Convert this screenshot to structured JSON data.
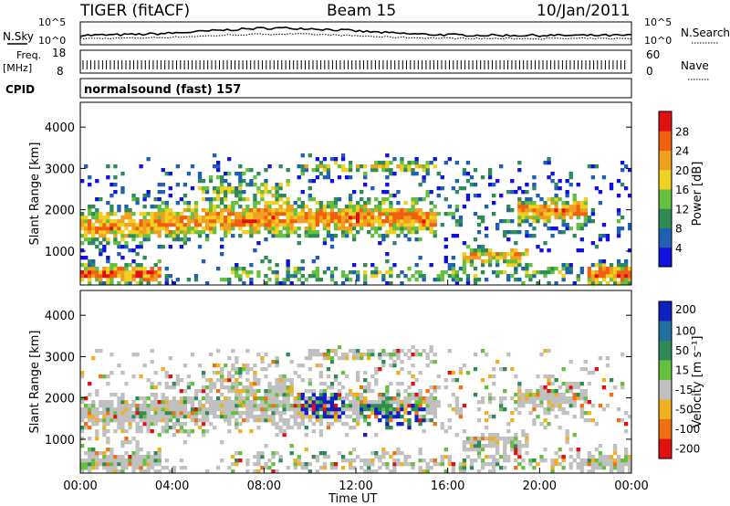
{
  "header": {
    "radar": "TIGER (fitACF)",
    "beam": "Beam 15",
    "date": "10/Jan/2011"
  },
  "panels": {
    "nsky": {
      "label": "N.Sky",
      "ticks_left": [
        "10^5",
        "10^0"
      ],
      "ticks_right": [
        "10^5",
        "10^0"
      ],
      "right_label": "N.Search"
    },
    "freq": {
      "label_1": "Freq.",
      "label_2": "[MHz]",
      "ticks_left": [
        "18",
        "8"
      ],
      "ticks_right": [
        "60",
        "0"
      ],
      "right_label": "Nave"
    },
    "cpid": {
      "label": "CPID",
      "text": "normalsound (fast) 157"
    }
  },
  "chart_data": [
    {
      "type": "heatmap",
      "name": "power",
      "x": [
        "00:00",
        "04:00",
        "08:00",
        "12:00",
        "16:00",
        "20:00",
        "00:00"
      ],
      "xlabel": "",
      "ylabel": "Slant Range [km]",
      "yticks": [
        "1000",
        "2000",
        "3000",
        "4000"
      ],
      "ylim": [
        180,
        4600
      ],
      "colorbar": {
        "label": "Power [dB]",
        "ticks": [
          "4",
          "8",
          "12",
          "16",
          "20",
          "24",
          "28"
        ],
        "colors": [
          "#1010e0",
          "#2060b0",
          "#2e8b57",
          "#66c040",
          "#f0d020",
          "#f0a020",
          "#f06010",
          "#e01010"
        ]
      }
    },
    {
      "type": "heatmap",
      "name": "velocity",
      "x": [
        "00:00",
        "04:00",
        "08:00",
        "12:00",
        "16:00",
        "20:00",
        "00:00"
      ],
      "xlabel": "Time UT",
      "ylabel": "Slant Range [km]",
      "yticks": [
        "1000",
        "2000",
        "3000",
        "4000"
      ],
      "ylim": [
        180,
        4600
      ],
      "colorbar": {
        "label": "Velocity [m s⁻¹]",
        "ticks": [
          "200",
          "100",
          "50",
          "15",
          "-15",
          "-50",
          "-100",
          "-200"
        ],
        "colors": [
          "#1020c0",
          "#2070a0",
          "#2e8b57",
          "#66c040",
          "#c0c0c0",
          "#f0b020",
          "#f07010",
          "#e01010"
        ]
      }
    }
  ]
}
